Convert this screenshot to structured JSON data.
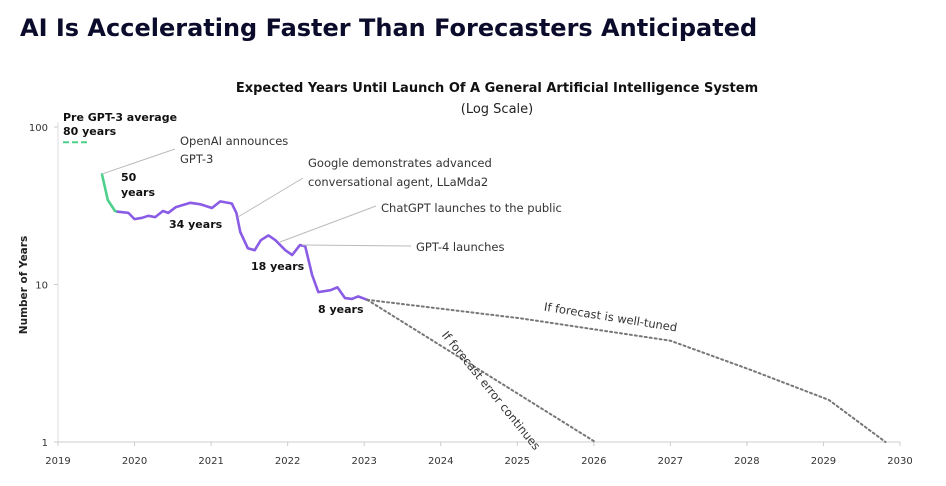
{
  "chart_data": {
    "type": "line",
    "title": "AI Is Accelerating Faster Than Forecasters Anticipated",
    "chart_title": "Expected Years Until Launch Of A General Artificial Intelligence System",
    "subtitle": "(Log Scale)",
    "y_label": "Number of Years",
    "log_y": true,
    "xlim": [
      2019,
      2030
    ],
    "xticks": [
      2019,
      2020,
      2021,
      2022,
      2023,
      2024,
      2025,
      2026,
      2027,
      2028,
      2029,
      2030
    ],
    "ylim": [
      1,
      100
    ],
    "yticks": [
      1,
      10,
      100
    ],
    "pre_gpt3_average": 80,
    "pre_gpt3_color": "#4cd08a",
    "series": [
      {
        "color": "#4cd08a",
        "dash": false,
        "x": [
          2019.575,
          2019.65,
          2019.745,
          2019.78
        ],
        "values": [
          50,
          34.4,
          29.3,
          29
        ]
      },
      {
        "color": "#8a5ce6",
        "dash": false,
        "x": [
          2019.78,
          2019.92,
          2020.0,
          2020.1,
          2020.18,
          2020.27,
          2020.37,
          2020.44,
          2020.54,
          2020.73,
          2020.86,
          2021.01,
          2021.12,
          2021.27,
          2021.33,
          2021.38,
          2021.48,
          2021.57,
          2021.65,
          2021.75,
          2021.84,
          2021.97,
          2022.06,
          2022.16,
          2022.23,
          2022.32,
          2022.4,
          2022.56,
          2022.65,
          2022.75,
          2022.84,
          2022.92,
          2023.04
        ],
        "values": [
          29,
          28.5,
          26,
          26.5,
          27.3,
          26.8,
          29.3,
          28.5,
          31,
          33,
          32.3,
          30.6,
          33.7,
          32.7,
          28.5,
          21.6,
          17,
          16.5,
          19.1,
          20.5,
          19.1,
          16.5,
          15.4,
          17.8,
          17.5,
          11.5,
          8.95,
          9.2,
          9.6,
          8.2,
          8.1,
          8.4,
          8
        ]
      },
      {
        "name": "If forecast is well-tuned",
        "color": "#777777",
        "dash": true,
        "x": [
          2023.04,
          2025.04,
          2027.0,
          2028.05,
          2029.07,
          2029.81
        ],
        "values": [
          8,
          6.1,
          4.4,
          2.87,
          1.85,
          1
        ]
      },
      {
        "name": "If forecast error continues",
        "color": "#777777",
        "dash": true,
        "x": [
          2023.04,
          2026.02
        ],
        "values": [
          8,
          1
        ]
      }
    ],
    "annotations": [
      [
        "Pre GPT-3 average",
        "80 years"
      ],
      [
        "OpenAI announces",
        "GPT-3"
      ],
      [
        "50",
        "years"
      ],
      [
        "Google demonstrates advanced",
        "conversational agent, LLaMda2"
      ],
      [
        "34 years"
      ],
      [
        "ChatGPT launches to the public"
      ],
      [
        "GPT-4 launches"
      ],
      [
        "18 years"
      ],
      [
        "8 years"
      ]
    ]
  }
}
